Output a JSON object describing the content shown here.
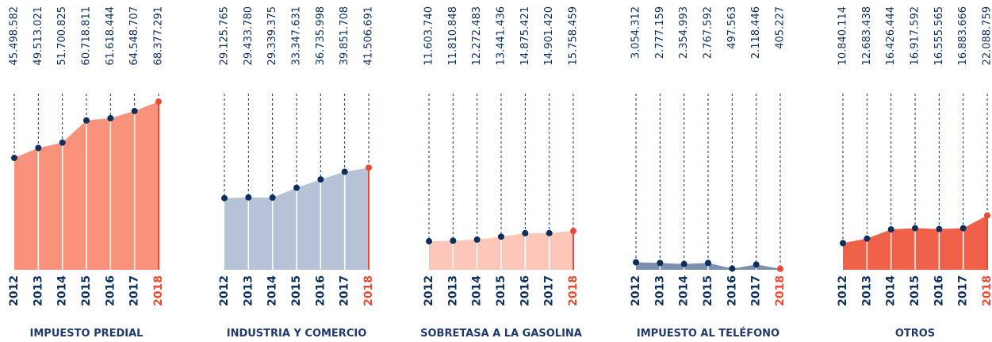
{
  "chart_data": [
    {
      "type": "area",
      "title": "IMPUESTO PREDIAL",
      "categories": [
        "2012",
        "2013",
        "2014",
        "2015",
        "2016",
        "2017",
        "2018"
      ],
      "values": [
        45498582,
        49513021,
        51700825,
        60718811,
        61618444,
        64548707,
        68377291
      ],
      "value_labels": [
        "45.498.582",
        "49.513.021",
        "51.700.825",
        "60.718.811",
        "61.618.444",
        "64.548.707",
        "68.377.291"
      ],
      "color": "#f8927a",
      "marker_color": "#0d2f5e",
      "highlight_color": "#ea4a33",
      "ylim": [
        0,
        70000000
      ]
    },
    {
      "type": "area",
      "title": "INDUSTRIA Y COMERCIO",
      "categories": [
        "2012",
        "2013",
        "2014",
        "2015",
        "2016",
        "2017",
        "2018"
      ],
      "values": [
        29125765,
        29433780,
        29339375,
        33347631,
        36735998,
        39851708,
        41506691
      ],
      "value_labels": [
        "29.125.765",
        "29.433.780",
        "29.339.375",
        "33.347.631",
        "36.735.998",
        "39.851.708",
        "41.506.691"
      ],
      "color": "#b6c3d6",
      "marker_color": "#0d2f5e",
      "highlight_color": "#ea4a33",
      "ylim": [
        0,
        70000000
      ]
    },
    {
      "type": "area",
      "title": "SOBRETASA A LA GASOLINA",
      "categories": [
        "2012",
        "2013",
        "2014",
        "2015",
        "2016",
        "2017",
        "2018"
      ],
      "values": [
        11603740,
        11810848,
        12272483,
        13441436,
        14875421,
        14901420,
        15758459
      ],
      "value_labels": [
        "11.603.740",
        "11.810.848",
        "12.272.483",
        "13.441.436",
        "14.875.421",
        "14.901.420",
        "15.758.459"
      ],
      "color": "#fcc6b8",
      "marker_color": "#0d2f5e",
      "highlight_color": "#ea4a33",
      "ylim": [
        0,
        70000000
      ]
    },
    {
      "type": "area",
      "title": "IMPUESTO AL TELÉFONO",
      "categories": [
        "2012",
        "2013",
        "2014",
        "2015",
        "2016",
        "2017",
        "2018"
      ],
      "values": [
        3054312,
        2777159,
        2354993,
        2767592,
        497563,
        2118446,
        405227
      ],
      "value_labels": [
        "3.054.312",
        "2.777.159",
        "2.354.993",
        "2.767.592",
        "497.563",
        "2.118.446",
        "405.227"
      ],
      "color": "#7b8fae",
      "marker_color": "#0d2f5e",
      "highlight_color": "#ea4a33",
      "ylim": [
        0,
        70000000
      ]
    },
    {
      "type": "area",
      "title": "OTROS",
      "categories": [
        "2012",
        "2013",
        "2014",
        "2015",
        "2016",
        "2017",
        "2018"
      ],
      "values": [
        10840114,
        12683438,
        16426444,
        16917592,
        16555565,
        16883666,
        22088759
      ],
      "value_labels": [
        "10.840.114",
        "12.683.438",
        "16.426.444",
        "16.917.592",
        "16.555.565",
        "16.883.666",
        "22.088.759"
      ],
      "color": "#f0614a",
      "marker_color": "#0d2f5e",
      "highlight_color": "#ea4a33",
      "ylim": [
        0,
        70000000
      ]
    }
  ]
}
